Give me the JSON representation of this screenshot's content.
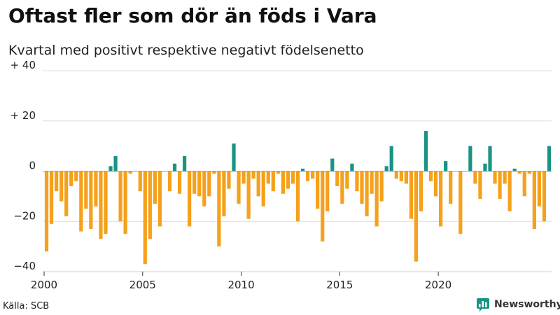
{
  "title": "Oftast fler som dör än föds i Vara",
  "subtitle": "Kvartal med positivt respektive negativt födelsenetto",
  "source": "Källa: SCB",
  "brand": "Newsworthy",
  "colors": {
    "positive": "#1a9384",
    "negative": "#f5a11b",
    "grid": "#dcdcdc",
    "zero": "#999999",
    "brand": "#1a9384"
  },
  "chart_data": {
    "type": "bar",
    "title": "Oftast fler som dör än föds i Vara",
    "subtitle": "Kvartal med positivt respektive negativt födelsenetto",
    "xlabel": "",
    "ylabel": "",
    "ylim": [
      -40,
      40
    ],
    "yticks": [
      -40,
      -20,
      0,
      20,
      40
    ],
    "ytick_labels": [
      "−40",
      "−20",
      "0",
      "+ 20",
      "+ 40"
    ],
    "xticks": [
      2000,
      2005,
      2010,
      2015,
      2020
    ],
    "x_start_year": 2000,
    "period": "quarter",
    "values": [
      -32,
      -21,
      -8,
      -12,
      -18,
      -6,
      -4,
      -24,
      -15,
      -23,
      -14,
      -27,
      -25,
      2,
      6,
      -20,
      -25,
      -1,
      0,
      -8,
      -37,
      -27,
      -13,
      -22,
      0,
      -8,
      3,
      -9,
      6,
      -22,
      -9,
      -10,
      -14,
      -10,
      -1,
      -30,
      -18,
      -7,
      11,
      -13,
      -5,
      -19,
      -3,
      -10,
      -14,
      -5,
      -8,
      -1,
      -9,
      -7,
      -5,
      -20,
      1,
      -4,
      -3,
      -15,
      -28,
      -16,
      5,
      -6,
      -13,
      -7,
      3,
      -8,
      -13,
      -18,
      -9,
      -22,
      -12,
      2,
      10,
      -3,
      -4,
      -5,
      -19,
      -36,
      -16,
      16,
      -4,
      -10,
      -22,
      4,
      -13,
      0,
      -25,
      0,
      10,
      -5,
      -11,
      3,
      10,
      -5,
      -11,
      -5,
      -16,
      1,
      -1,
      -10,
      -1,
      -23,
      -14,
      -20,
      10
    ]
  }
}
